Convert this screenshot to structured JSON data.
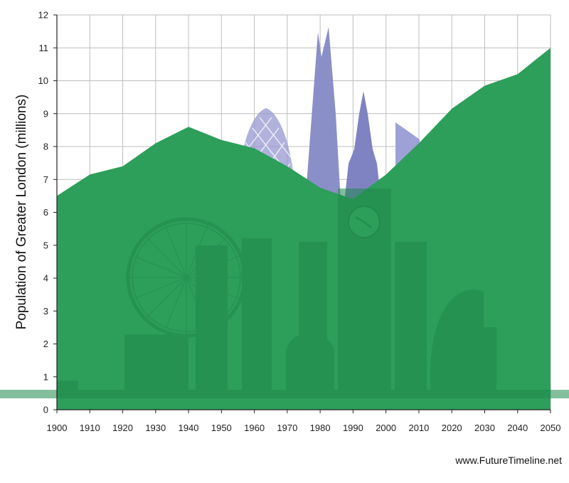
{
  "chart_data": {
    "type": "area",
    "ylabel": "Population of Greater London (millions)",
    "xlabel": "",
    "x": [
      1900,
      1910,
      1920,
      1930,
      1940,
      1950,
      1960,
      1970,
      1980,
      1990,
      2000,
      2010,
      2020,
      2030,
      2040,
      2050
    ],
    "series": [
      {
        "values": [
          6.5,
          7.15,
          7.4,
          8.1,
          8.6,
          8.2,
          7.95,
          7.4,
          6.75,
          6.4,
          7.15,
          8.1,
          9.15,
          9.85,
          10.2,
          11.0
        ]
      }
    ],
    "xlim": [
      1900,
      2050
    ],
    "ylim": [
      0,
      12
    ],
    "x_ticks": [
      1900,
      1910,
      1920,
      1930,
      1940,
      1950,
      1960,
      1970,
      1980,
      1990,
      2000,
      2010,
      2020,
      2030,
      2040,
      2050
    ],
    "y_ticks": [
      0,
      1,
      2,
      3,
      4,
      5,
      6,
      7,
      8,
      9,
      10,
      11,
      12
    ],
    "grid": true,
    "colors": {
      "area": "#2e9e5b",
      "grid": "#bdbdbd",
      "skyline": "#8b8fc8"
    }
  },
  "credit": "www.FutureTimeline.net"
}
